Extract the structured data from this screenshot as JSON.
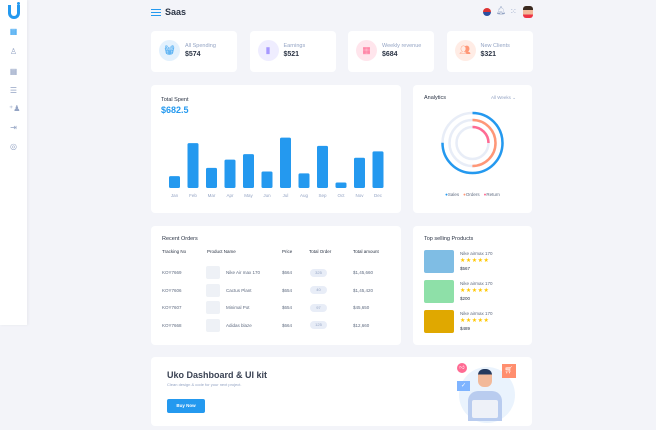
{
  "header": {
    "title": "Saas"
  },
  "sidebar": {
    "items": [
      "dashboard-icon",
      "user-icon",
      "grid-icon",
      "list-icon",
      "add-user-icon",
      "login-icon",
      "location-icon"
    ]
  },
  "stats": [
    {
      "label": "All Spending",
      "value": "$574",
      "icon": "basket-icon",
      "color": "#2499ef",
      "bg": "#e3f1fd"
    },
    {
      "label": "Earnings",
      "value": "$521",
      "icon": "bar-chart-icon",
      "color": "#a798ff",
      "bg": "#efedff"
    },
    {
      "label": "Weekly revenue",
      "value": "$684",
      "icon": "grid-icon",
      "color": "#ff6b93",
      "bg": "#ffe5ec"
    },
    {
      "label": "New Clients",
      "value": "$321",
      "icon": "users-icon",
      "color": "#ff9777",
      "bg": "#ffece5"
    }
  ],
  "total_spent": {
    "title": "Total Spent",
    "value": "$682.5"
  },
  "chart_data": {
    "type": "bar",
    "categories": [
      "Jan",
      "Feb",
      "Mar",
      "Apr",
      "May",
      "Jun",
      "Jul",
      "Aug",
      "Sep",
      "Oct",
      "Nov",
      "Dec"
    ],
    "values": [
      13,
      49,
      22,
      31,
      37,
      18,
      55,
      16,
      46,
      6,
      33,
      40
    ],
    "color": "#2499ef",
    "grid": false
  },
  "analytics": {
    "title": "Analytics",
    "filter": "All Weeks",
    "legend": [
      {
        "name": "Sales",
        "color": "#2499ef",
        "fraction": 0.75
      },
      {
        "name": "Orders",
        "color": "#ff9777",
        "fraction": 0.5
      },
      {
        "name": "Return",
        "color": "#ff6b93",
        "fraction": 0.25
      }
    ]
  },
  "orders": {
    "title": "Recent Orders",
    "columns": [
      "Tracking No",
      "Product Name",
      "Price",
      "Total Order",
      "Total amount"
    ],
    "rows": [
      {
        "tracking": "KOY7669",
        "product": "Nike Air max 170",
        "price": "$664",
        "total": "325",
        "amount": "$1,45,660"
      },
      {
        "tracking": "KOY7606",
        "product": "Cactus Plant",
        "price": "$654",
        "total": "40",
        "amount": "$1,45,420"
      },
      {
        "tracking": "KOY7607",
        "product": "Minimal Pot",
        "price": "$654",
        "total": "97",
        "amount": "$45,650"
      },
      {
        "tracking": "KOY7668",
        "product": "Adidas blaze",
        "price": "$664",
        "total": "125",
        "amount": "$12,660"
      }
    ]
  },
  "top_selling": {
    "title": "Top selling Products",
    "stars": "★★★★★",
    "items": [
      {
        "name": "Nike airmax 170",
        "price": "$567",
        "bg": "#7fbde4"
      },
      {
        "name": "Nike airmax 170",
        "price": "$200",
        "bg": "#8ee0a8"
      },
      {
        "name": "Nike airmax 170",
        "price": "$489",
        "bg": "#e0a800"
      }
    ]
  },
  "banner": {
    "title": "Uko Dashboard & UI kit",
    "subtitle": "Clean design & code for your next project.",
    "button": "Buy Now"
  }
}
